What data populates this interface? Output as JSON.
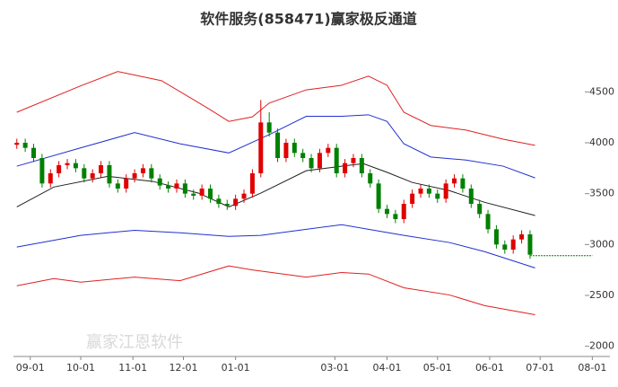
{
  "chart_data": {
    "type": "candlestick",
    "title": "软件服务(858471)赢家极反通道",
    "watermark": "赢家江恩软件",
    "xlim": [
      -10,
      345
    ],
    "ylim": [
      1900,
      5050
    ],
    "xticks": [
      {
        "value": 0,
        "label": "09-01"
      },
      {
        "value": 30,
        "label": "10-01"
      },
      {
        "value": 61,
        "label": "11-01"
      },
      {
        "value": 91,
        "label": "12-01"
      },
      {
        "value": 122,
        "label": "01-01"
      },
      {
        "value": 181,
        "label": "03-01"
      },
      {
        "value": 212,
        "label": "04-01"
      },
      {
        "value": 242,
        "label": "05-01"
      },
      {
        "value": 273,
        "label": "06-01"
      },
      {
        "value": 303,
        "label": "07-01"
      },
      {
        "value": 334,
        "label": "08-01"
      }
    ],
    "yticks": [
      2000,
      2500,
      3000,
      3500,
      4000,
      4500
    ],
    "up_color": "#e00000",
    "down_color": "#008000",
    "candles": {
      "x": [
        -8,
        -3,
        2,
        7,
        12,
        17,
        22,
        27,
        32,
        37,
        42,
        47,
        52,
        57,
        62,
        67,
        72,
        77,
        82,
        87,
        92,
        97,
        102,
        107,
        112,
        117,
        122,
        127,
        132,
        137,
        142,
        147,
        152,
        157,
        162,
        167,
        172,
        177,
        182,
        187,
        192,
        197,
        202,
        207,
        212,
        217,
        222,
        227,
        232,
        237,
        242,
        247,
        252,
        257,
        262,
        267,
        272,
        277,
        282,
        287,
        292,
        297
      ],
      "open": [
        3980,
        4000,
        3950,
        3850,
        3600,
        3700,
        3780,
        3800,
        3750,
        3650,
        3700,
        3780,
        3600,
        3550,
        3650,
        3700,
        3750,
        3650,
        3580,
        3550,
        3600,
        3500,
        3480,
        3550,
        3450,
        3400,
        3380,
        3450,
        3500,
        3700,
        4200,
        4100,
        3850,
        4000,
        3900,
        3850,
        3750,
        3900,
        3950,
        3700,
        3800,
        3850,
        3700,
        3600,
        3350,
        3300,
        3250,
        3400,
        3500,
        3550,
        3500,
        3450,
        3600,
        3650,
        3550,
        3400,
        3300,
        3150,
        3000,
        2950,
        3050,
        3100
      ],
      "high": [
        4040,
        4040,
        3990,
        3890,
        3740,
        3820,
        3840,
        3840,
        3790,
        3740,
        3820,
        3820,
        3640,
        3690,
        3740,
        3790,
        3790,
        3690,
        3620,
        3640,
        3640,
        3540,
        3590,
        3590,
        3490,
        3440,
        3490,
        3540,
        3740,
        4420,
        4300,
        4140,
        4040,
        4040,
        3940,
        3890,
        3940,
        3990,
        3990,
        3840,
        3890,
        3890,
        3740,
        3640,
        3390,
        3340,
        3440,
        3540,
        3590,
        3590,
        3540,
        3640,
        3690,
        3690,
        3590,
        3440,
        3340,
        3190,
        3040,
        3090,
        3140,
        3140
      ],
      "low": [
        3940,
        3910,
        3810,
        3560,
        3560,
        3660,
        3740,
        3710,
        3610,
        3610,
        3660,
        3560,
        3510,
        3510,
        3610,
        3660,
        3610,
        3540,
        3510,
        3510,
        3460,
        3440,
        3440,
        3410,
        3360,
        3340,
        3340,
        3410,
        3460,
        3660,
        4060,
        3810,
        3810,
        3860,
        3810,
        3710,
        3710,
        3860,
        3660,
        3660,
        3760,
        3660,
        3560,
        3310,
        3260,
        3210,
        3210,
        3360,
        3460,
        3460,
        3410,
        3410,
        3560,
        3510,
        3360,
        3260,
        3110,
        2960,
        2910,
        2910,
        3010,
        2860
      ],
      "close": [
        4000,
        3950,
        3850,
        3600,
        3700,
        3780,
        3800,
        3750,
        3650,
        3700,
        3780,
        3600,
        3550,
        3650,
        3700,
        3750,
        3650,
        3580,
        3550,
        3600,
        3500,
        3480,
        3550,
        3450,
        3400,
        3380,
        3450,
        3500,
        3700,
        4200,
        4100,
        3850,
        4000,
        3900,
        3850,
        3750,
        3900,
        3950,
        3700,
        3800,
        3850,
        3700,
        3600,
        3350,
        3300,
        3250,
        3400,
        3500,
        3550,
        3500,
        3450,
        3600,
        3650,
        3550,
        3400,
        3300,
        3150,
        3000,
        2950,
        3050,
        3100,
        2900
      ]
    },
    "lines": [
      {
        "color": "#e02020",
        "x": [
          -8,
          30,
          52,
          78,
          105,
          118,
          132,
          142,
          164,
          185,
          201,
          212,
          222,
          238,
          259,
          281,
          300
        ],
        "values": [
          4300,
          4560,
          4700,
          4610,
          4345,
          4210,
          4255,
          4390,
          4520,
          4565,
          4655,
          4565,
          4300,
          4170,
          4125,
          4035,
          3975
        ]
      },
      {
        "color": "#2030d0",
        "x": [
          -8,
          30,
          62,
          89,
          118,
          142,
          164,
          185,
          201,
          212,
          222,
          238,
          259,
          281,
          300
        ],
        "values": [
          3770,
          3950,
          4100,
          3990,
          3900,
          4080,
          4260,
          4260,
          4275,
          4210,
          3990,
          3860,
          3830,
          3770,
          3655
        ]
      },
      {
        "color": "#202020",
        "x": [
          -8,
          14,
          46,
          73,
          100,
          118,
          137,
          164,
          185,
          198,
          212,
          227,
          249,
          270,
          300
        ],
        "values": [
          3370,
          3565,
          3670,
          3620,
          3505,
          3370,
          3505,
          3725,
          3770,
          3795,
          3710,
          3610,
          3530,
          3415,
          3285
        ]
      },
      {
        "color": "#2030d0",
        "x": [
          -8,
          30,
          62,
          89,
          118,
          137,
          164,
          185,
          201,
          222,
          249,
          270,
          300
        ],
        "values": [
          2975,
          3090,
          3140,
          3115,
          3080,
          3090,
          3150,
          3195,
          3150,
          3090,
          3020,
          2930,
          2770
        ]
      },
      {
        "color": "#e02020",
        "x": [
          -8,
          14,
          30,
          62,
          89,
          118,
          132,
          164,
          185,
          201,
          222,
          249,
          270,
          300
        ],
        "values": [
          2595,
          2665,
          2630,
          2680,
          2645,
          2790,
          2750,
          2680,
          2725,
          2710,
          2575,
          2505,
          2400,
          2310
        ]
      }
    ],
    "reference_line": {
      "value": 2890,
      "color": "#008000",
      "x": [
        297,
        334
      ]
    }
  }
}
